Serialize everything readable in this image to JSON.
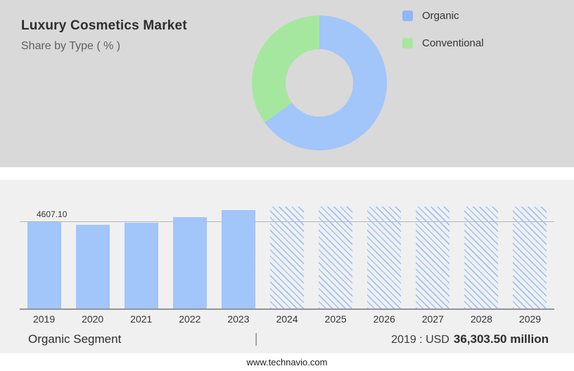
{
  "header": {
    "title": "Luxury Cosmetics Market",
    "subtitle": "Share by Type ( % )"
  },
  "colors": {
    "organic_blue": "#a2c5fa",
    "conventional_green": "#a6e7a0",
    "top_background": "#d9d9d9",
    "chart_background": "#f0f0f0"
  },
  "legend": {
    "items": [
      {
        "label": "Organic",
        "color": "#8fb6f8"
      },
      {
        "label": "Conventional",
        "color": "#a6e7a0"
      }
    ]
  },
  "chart_data": [
    {
      "type": "pie",
      "subtype": "donut",
      "title": "Share by Type ( % )",
      "labels": [
        "Organic",
        "Conventional"
      ],
      "values": [
        65,
        35
      ],
      "colors": [
        "#a2c5fa",
        "#a6e7a0"
      ],
      "legend_position": "right",
      "note": "Percentages estimated from arc angles; no numeric labels shown in image"
    },
    {
      "type": "bar",
      "categories": [
        "2019",
        "2020",
        "2021",
        "2022",
        "2023",
        "2024",
        "2025",
        "2026",
        "2027",
        "2028",
        "2029"
      ],
      "values": [
        4607.1,
        4450,
        4580,
        4850,
        5250,
        null,
        null,
        null,
        null,
        null,
        null
      ],
      "forecast_categories": [
        "2024",
        "2025",
        "2026",
        "2027",
        "2028",
        "2029"
      ],
      "data_label": {
        "category": "2019",
        "text": "4607.10",
        "value": 4607.1
      },
      "ylim": [
        0,
        5500
      ],
      "bar_color": "#a2c5fa",
      "forecast_style": "diagonal-hatch-full-height",
      "grid": "single horizontal gridline at 4607.10 level",
      "note": "Only the 2019 bar is labeled (4607.10); 2020-2023 values estimated from bar heights; 2024-2029 are full-height hatched forecast placeholders"
    }
  ],
  "caption": {
    "left": "Organic Segment",
    "separator": "|",
    "value_prefix": "2019 : USD",
    "value_bold": "36,303.50 million"
  },
  "footer": {
    "url": "www.technavio.com"
  }
}
